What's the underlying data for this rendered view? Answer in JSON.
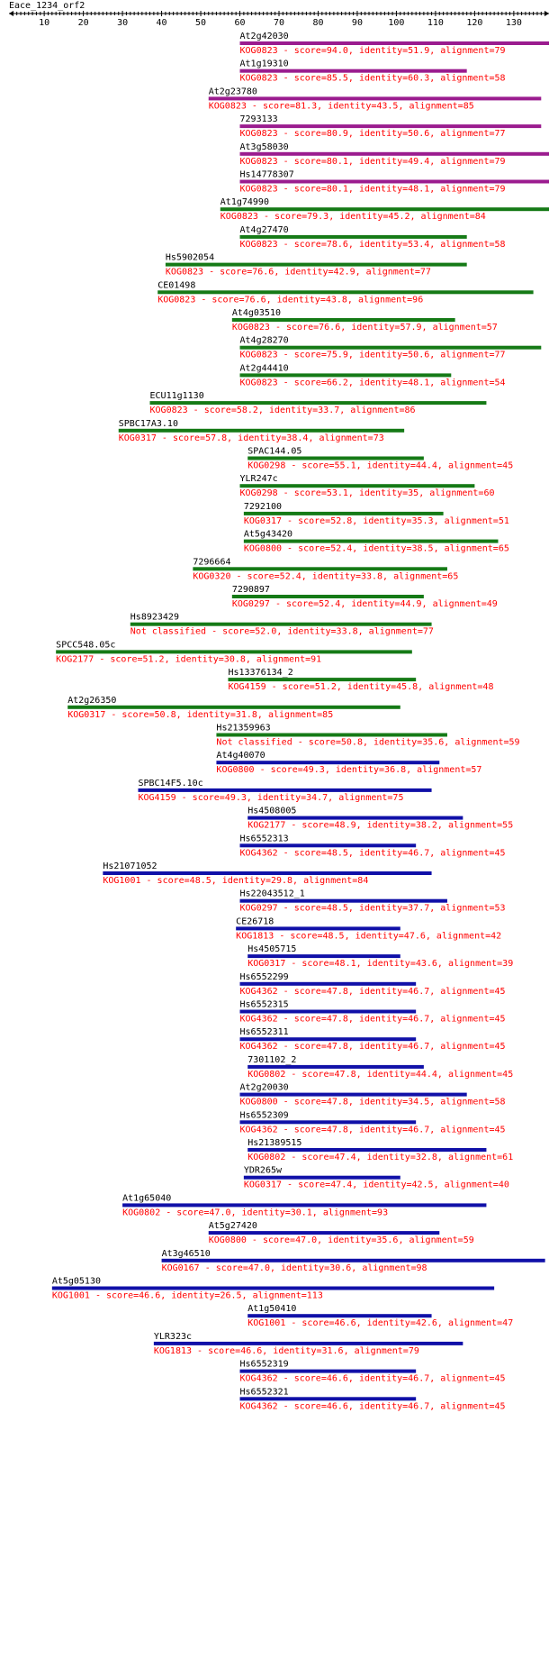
{
  "query_name": "Eace_1234_orf2",
  "axis": {
    "min": 1,
    "max": 139,
    "tick_labels": [
      10,
      20,
      30,
      40,
      50,
      60,
      70,
      80,
      90,
      100,
      110,
      120,
      130
    ]
  },
  "colors": {
    "magenta": "#9b1c8f",
    "green": "#157a16",
    "blue": "#1010a8",
    "desc": "#ff0000",
    "label": "#000000",
    "axis": "#000000"
  },
  "hits": [
    {
      "name": "At2g42030",
      "desc": "KOG0823 - score=94.0, identity=51.9, alignment=79",
      "start": 60,
      "end": 139,
      "color": "magenta"
    },
    {
      "name": "At1g19310",
      "desc": "KOG0823 - score=85.5, identity=60.3, alignment=58",
      "start": 60,
      "end": 118,
      "color": "magenta"
    },
    {
      "name": "At2g23780",
      "desc": "KOG0823 - score=81.3, identity=43.5, alignment=85",
      "start": 52,
      "end": 137,
      "color": "magenta"
    },
    {
      "name": "7293133",
      "desc": "KOG0823 - score=80.9, identity=50.6, alignment=77",
      "start": 60,
      "end": 137,
      "color": "magenta"
    },
    {
      "name": "At3g58030",
      "desc": "KOG0823 - score=80.1, identity=49.4, alignment=79",
      "start": 60,
      "end": 139,
      "color": "magenta"
    },
    {
      "name": "Hs14778307",
      "desc": "KOG0823 - score=80.1, identity=48.1, alignment=79",
      "start": 60,
      "end": 139,
      "color": "magenta"
    },
    {
      "name": "At1g74990",
      "desc": "KOG0823 - score=79.3, identity=45.2, alignment=84",
      "start": 55,
      "end": 139,
      "color": "green"
    },
    {
      "name": "At4g27470",
      "desc": "KOG0823 - score=78.6, identity=53.4, alignment=58",
      "start": 60,
      "end": 118,
      "color": "green"
    },
    {
      "name": "Hs5902054",
      "desc": "KOG0823 - score=76.6, identity=42.9, alignment=77",
      "start": 41,
      "end": 118,
      "color": "green"
    },
    {
      "name": "CE01498",
      "desc": "KOG0823 - score=76.6, identity=43.8, alignment=96",
      "start": 39,
      "end": 135,
      "color": "green"
    },
    {
      "name": "At4g03510",
      "desc": "KOG0823 - score=76.6, identity=57.9, alignment=57",
      "start": 58,
      "end": 115,
      "color": "green"
    },
    {
      "name": "At4g28270",
      "desc": "KOG0823 - score=75.9, identity=50.6, alignment=77",
      "start": 60,
      "end": 137,
      "color": "green"
    },
    {
      "name": "At2g44410",
      "desc": "KOG0823 - score=66.2, identity=48.1, alignment=54",
      "start": 60,
      "end": 114,
      "color": "green"
    },
    {
      "name": "ECU11g1130",
      "desc": "KOG0823 - score=58.2, identity=33.7, alignment=86",
      "start": 37,
      "end": 123,
      "color": "green"
    },
    {
      "name": "SPBC17A3.10",
      "desc": "KOG0317 - score=57.8, identity=38.4, alignment=73",
      "start": 29,
      "end": 102,
      "color": "green"
    },
    {
      "name": "SPAC144.05",
      "desc": "KOG0298 - score=55.1, identity=44.4, alignment=45",
      "start": 62,
      "end": 107,
      "color": "green"
    },
    {
      "name": "YLR247c",
      "desc": "KOG0298 - score=53.1, identity=35, alignment=60",
      "start": 60,
      "end": 120,
      "color": "green"
    },
    {
      "name": "7292100",
      "desc": "KOG0317 - score=52.8, identity=35.3, alignment=51",
      "start": 61,
      "end": 112,
      "color": "green"
    },
    {
      "name": "At5g43420",
      "desc": "KOG0800 - score=52.4, identity=38.5, alignment=65",
      "start": 61,
      "end": 126,
      "color": "green"
    },
    {
      "name": "7296664",
      "desc": "KOG0320 - score=52.4, identity=33.8, alignment=65",
      "start": 48,
      "end": 113,
      "color": "green"
    },
    {
      "name": "7290897",
      "desc": "KOG0297 - score=52.4, identity=44.9, alignment=49",
      "start": 58,
      "end": 107,
      "color": "green"
    },
    {
      "name": "Hs8923429",
      "desc": "Not classified - score=52.0, identity=33.8, alignment=77",
      "start": 32,
      "end": 109,
      "color": "green"
    },
    {
      "name": "SPCC548.05c",
      "desc": "KOG2177 - score=51.2, identity=30.8, alignment=91",
      "start": 13,
      "end": 104,
      "color": "green"
    },
    {
      "name": "Hs13376134_2",
      "desc": "KOG4159 - score=51.2, identity=45.8, alignment=48",
      "start": 57,
      "end": 105,
      "color": "green"
    },
    {
      "name": "At2g26350",
      "desc": "KOG0317 - score=50.8, identity=31.8, alignment=85",
      "start": 16,
      "end": 101,
      "color": "green"
    },
    {
      "name": "Hs21359963",
      "desc": "Not classified - score=50.8, identity=35.6, alignment=59",
      "start": 54,
      "end": 113,
      "color": "green"
    },
    {
      "name": "At4g40070",
      "desc": "KOG0800 - score=49.3, identity=36.8, alignment=57",
      "start": 54,
      "end": 111,
      "color": "blue"
    },
    {
      "name": "SPBC14F5.10c",
      "desc": "KOG4159 - score=49.3, identity=34.7, alignment=75",
      "start": 34,
      "end": 109,
      "color": "blue"
    },
    {
      "name": "Hs4508005",
      "desc": "KOG2177 - score=48.9, identity=38.2, alignment=55",
      "start": 62,
      "end": 117,
      "color": "blue"
    },
    {
      "name": "Hs6552313",
      "desc": "KOG4362 - score=48.5, identity=46.7, alignment=45",
      "start": 60,
      "end": 105,
      "color": "blue"
    },
    {
      "name": "Hs21071052",
      "desc": "KOG1001 - score=48.5, identity=29.8, alignment=84",
      "start": 25,
      "end": 109,
      "color": "blue"
    },
    {
      "name": "Hs22043512_1",
      "desc": "KOG0297 - score=48.5, identity=37.7, alignment=53",
      "start": 60,
      "end": 113,
      "color": "blue"
    },
    {
      "name": "CE26718",
      "desc": "KOG1813 - score=48.5, identity=47.6, alignment=42",
      "start": 59,
      "end": 101,
      "color": "blue"
    },
    {
      "name": "Hs4505715",
      "desc": "KOG0317 - score=48.1, identity=43.6, alignment=39",
      "start": 62,
      "end": 101,
      "color": "blue"
    },
    {
      "name": "Hs6552299",
      "desc": "KOG4362 - score=47.8, identity=46.7, alignment=45",
      "start": 60,
      "end": 105,
      "color": "blue"
    },
    {
      "name": "Hs6552315",
      "desc": "KOG4362 - score=47.8, identity=46.7, alignment=45",
      "start": 60,
      "end": 105,
      "color": "blue"
    },
    {
      "name": "Hs6552311",
      "desc": "KOG4362 - score=47.8, identity=46.7, alignment=45",
      "start": 60,
      "end": 105,
      "color": "blue"
    },
    {
      "name": "7301102_2",
      "desc": "KOG0802 - score=47.8, identity=44.4, alignment=45",
      "start": 62,
      "end": 107,
      "color": "blue"
    },
    {
      "name": "At2g20030",
      "desc": "KOG0800 - score=47.8, identity=34.5, alignment=58",
      "start": 60,
      "end": 118,
      "color": "blue"
    },
    {
      "name": "Hs6552309",
      "desc": "KOG4362 - score=47.8, identity=46.7, alignment=45",
      "start": 60,
      "end": 105,
      "color": "blue"
    },
    {
      "name": "Hs21389515",
      "desc": "KOG0802 - score=47.4, identity=32.8, alignment=61",
      "start": 62,
      "end": 123,
      "color": "blue"
    },
    {
      "name": "YDR265w",
      "desc": "KOG0317 - score=47.4, identity=42.5, alignment=40",
      "start": 61,
      "end": 101,
      "color": "blue"
    },
    {
      "name": "At1g65040",
      "desc": "KOG0802 - score=47.0, identity=30.1, alignment=93",
      "start": 30,
      "end": 123,
      "color": "blue"
    },
    {
      "name": "At5g27420",
      "desc": "KOG0800 - score=47.0, identity=35.6, alignment=59",
      "start": 52,
      "end": 111,
      "color": "blue"
    },
    {
      "name": "At3g46510",
      "desc": "KOG0167 - score=47.0, identity=30.6, alignment=98",
      "start": 40,
      "end": 138,
      "color": "blue"
    },
    {
      "name": "At5g05130",
      "desc": "KOG1001 - score=46.6, identity=26.5, alignment=113",
      "start": 12,
      "end": 125,
      "color": "blue"
    },
    {
      "name": "At1g50410",
      "desc": "KOG1001 - score=46.6, identity=42.6, alignment=47",
      "start": 62,
      "end": 109,
      "color": "blue"
    },
    {
      "name": "YLR323c",
      "desc": "KOG1813 - score=46.6, identity=31.6, alignment=79",
      "start": 38,
      "end": 117,
      "color": "blue"
    },
    {
      "name": "Hs6552319",
      "desc": "KOG4362 - score=46.6, identity=46.7, alignment=45",
      "start": 60,
      "end": 105,
      "color": "blue"
    },
    {
      "name": "Hs6552321",
      "desc": "KOG4362 - score=46.6, identity=46.7, alignment=45",
      "start": 60,
      "end": 105,
      "color": "blue"
    }
  ]
}
